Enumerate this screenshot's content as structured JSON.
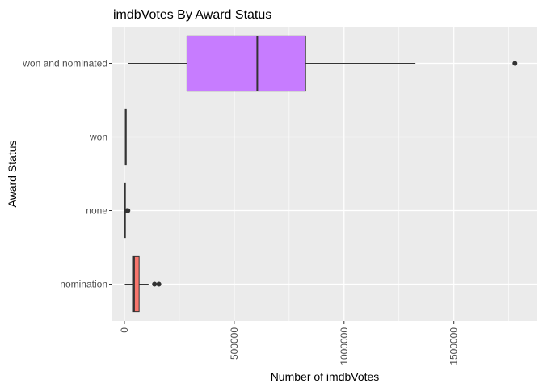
{
  "chart_data": {
    "type": "boxplot",
    "orientation": "horizontal",
    "title": "imdbVotes By Award Status",
    "xlabel": "Number of imdbVotes",
    "ylabel": "Award Status",
    "xlim": [
      -55000,
      1880000
    ],
    "xticks": [
      0,
      500000,
      1000000,
      1500000
    ],
    "xtick_labels": [
      "0",
      "500000",
      "1000000",
      "1500000"
    ],
    "xtick_rotation": -90,
    "grid": true,
    "legend": "none",
    "categories": [
      "won and nominated",
      "won",
      "none",
      "nomination"
    ],
    "series": [
      {
        "category": "won and nominated",
        "color": "#C77CFF",
        "whisker_low": 15000,
        "q1": 285000,
        "median": 605000,
        "q3": 825000,
        "whisker_high": 1325000,
        "outliers": [
          1778000
        ]
      },
      {
        "category": "won",
        "color": "#00BFC4",
        "whisker_low": 2000,
        "q1": 4000,
        "median": 6000,
        "q3": 8000,
        "whisker_high": 9000,
        "outliers": []
      },
      {
        "category": "none",
        "color": "#7CAE00",
        "whisker_low": 0,
        "q1": 200,
        "median": 500,
        "q3": 1000,
        "whisker_high": 2000,
        "outliers": [
          12000,
          14000,
          16000
        ]
      },
      {
        "category": "nomination",
        "color": "#F8766D",
        "whisker_low": 2000,
        "q1": 37000,
        "median": 44000,
        "q3": 67000,
        "whisker_high": 110000,
        "outliers": [
          137000,
          157000
        ]
      }
    ]
  }
}
